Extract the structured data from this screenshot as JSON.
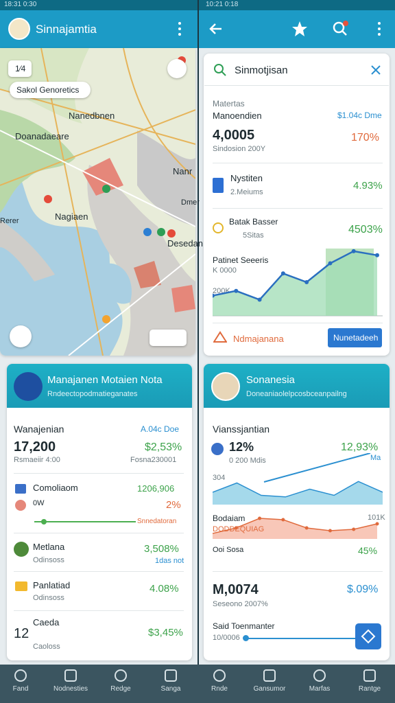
{
  "status_bar": {
    "left": "18:31 0:30",
    "right": "10:21 0:18"
  },
  "left_app_bar": {
    "title": "Sinnajamtia"
  },
  "map": {
    "zoom": "1⁄4",
    "chip": "Sakol Genoretics",
    "labels": [
      "Nanedbnen",
      "Doanadaeare",
      "Nanr",
      "Dmer",
      "Nagiaen",
      "Rerer",
      "Desedan"
    ]
  },
  "search": {
    "query": "Sinmotjisan"
  },
  "insights": {
    "label": "Matertas",
    "title": "Manoendien",
    "link": "$1.04c Dme",
    "total": "4,0005",
    "total_change": "170%",
    "total_sub": "Sindosion 200Y",
    "rows": [
      {
        "name": "Nystiten",
        "sub": "2.Meiums",
        "value": "4.93%"
      },
      {
        "name": "Batak Basser",
        "sub": "5Sitas",
        "value": "4503%"
      }
    ],
    "chart": {
      "title": "Patinet Seeeris",
      "top_label": "K 0000",
      "mid_label": "200K",
      "ylim": [
        0,
        100
      ],
      "values": [
        30,
        37,
        24,
        63,
        50,
        78,
        96,
        90
      ]
    },
    "footer": "Ndmajanana",
    "button": "Nunetadeeh"
  },
  "left_card": {
    "header_title": "Manajanen Motaien Nota",
    "header_sub": "Rndeectopodmatieganates",
    "title": "Wanajenian",
    "link": "A.04c Doe",
    "total": "17,200",
    "total_change": "$2,53%",
    "total_sub": "Rsmaeiir 4:00",
    "total_sub2": "Fosna230001",
    "rows": [
      {
        "name": "Comoliaom",
        "value": "1206,906",
        "sub": "0W",
        "sub_value": "2%",
        "progress_label": "Snnedatoran"
      },
      {
        "name": "Metlana",
        "sub": "Odinsoss",
        "value": "3,508%",
        "sub_value": "1das not"
      },
      {
        "name": "Panlatiad",
        "sub": "Odinsoss",
        "value": "4.08%"
      },
      {
        "name": "Caeda",
        "sub": "Caoloss",
        "value": "$3,45%",
        "lead": "12"
      }
    ]
  },
  "right_card": {
    "header_title": "Sonanesia",
    "header_sub": "Doneaniaolelpcosbceanpailng",
    "title": "Vianssjantian",
    "stat": "12%",
    "stat_change": "12,93%",
    "stat_sub": "0 200 Mdis",
    "stat_sub2": "Ma",
    "chart_label": "304",
    "chart": {
      "ylim": [
        0,
        100
      ],
      "area": [
        40,
        70,
        30,
        25,
        50,
        30,
        75,
        40
      ],
      "line": [
        30,
        100
      ],
      "red": [
        20,
        40,
        75,
        70,
        40,
        30,
        35,
        55
      ]
    },
    "red_label": "Bodaiam",
    "red_sub": "DODDEQUIAG",
    "red_value": "101K",
    "foot_label": "Ooi Sosa",
    "foot_value": "45%",
    "total": "M,0074",
    "total_change": "$.09%",
    "total_sub": "Seseono 2007%",
    "slider_label": "Said Toenmanter",
    "slider_value": "10/0006"
  },
  "nav": {
    "left": [
      "Fand",
      "Nodnesties",
      "Redge",
      "Sanga"
    ],
    "right": [
      "Rnde",
      "Gansumor",
      "Marfas",
      "Rantge"
    ]
  }
}
